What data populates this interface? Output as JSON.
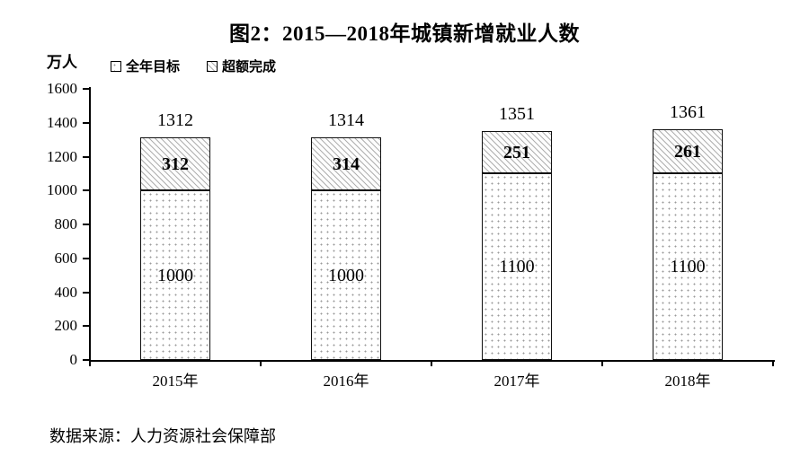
{
  "chart_data": {
    "type": "bar",
    "stacked": true,
    "title": "图2：2015—2018年城镇新增就业人数",
    "y_unit_label": "万人",
    "categories": [
      "2015年",
      "2016年",
      "2017年",
      "2018年"
    ],
    "series": [
      {
        "name": "全年目标",
        "pattern": "dots",
        "values": [
          1000,
          1000,
          1100,
          1100
        ]
      },
      {
        "name": "超额完成",
        "pattern": "diagonal-hatch",
        "values": [
          312,
          314,
          251,
          261
        ]
      }
    ],
    "totals": [
      1312,
      1314,
      1351,
      1361
    ],
    "ylim": [
      0,
      1600
    ],
    "yticks": [
      0,
      200,
      400,
      600,
      800,
      1000,
      1200,
      1400,
      1600
    ],
    "grid": false,
    "legend_position": "top-left",
    "colors": {
      "axis": "#000000",
      "bar_border": "#111111",
      "hatch_line": "#b0b0b0",
      "dot": "#9a9a9a",
      "background": "#ffffff",
      "text": "#000000"
    }
  },
  "footer": {
    "source_note": "数据来源：人力资源社会保障部"
  }
}
